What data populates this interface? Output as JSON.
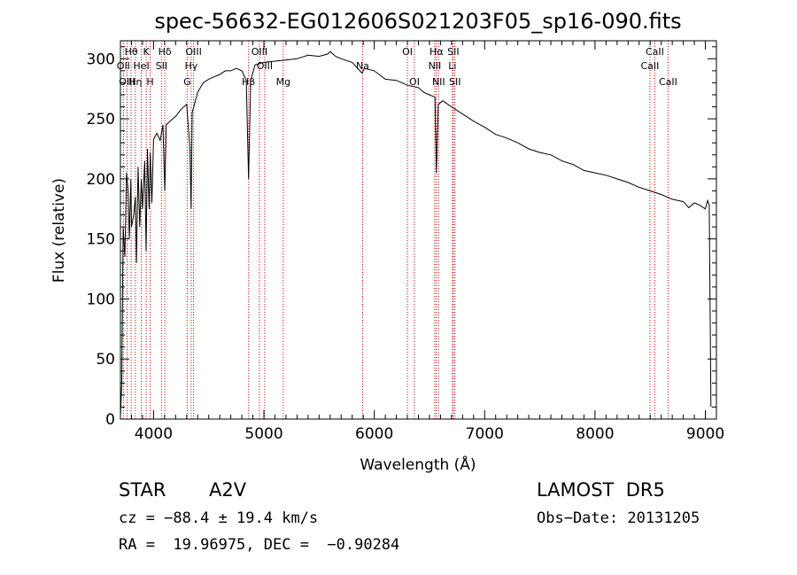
{
  "chart_data": {
    "type": "line",
    "title": "spec-56632-EG012606S021203F05_sp16-090.fits",
    "xlabel": "Wavelength (Å)",
    "ylabel": "Flux (relative)",
    "xlim": [
      3700,
      9100
    ],
    "ylim": [
      0,
      315
    ],
    "xticks": [
      "4000",
      "5000",
      "6000",
      "7000",
      "8000",
      "9000"
    ],
    "yticks": [
      "0",
      "50",
      "100",
      "150",
      "200",
      "250",
      "300"
    ],
    "grid": false,
    "series": [
      {
        "x": [
          3700,
          3712,
          3725,
          3740,
          3755,
          3770,
          3780,
          3795,
          3800,
          3820,
          3835,
          3845,
          3860,
          3875,
          3889,
          3900,
          3920,
          3933,
          3945,
          3960,
          3970,
          3985,
          4000,
          4030,
          4060,
          4085,
          4102,
          4115,
          4150,
          4200,
          4250,
          4300,
          4330,
          4340,
          4350,
          4400,
          4450,
          4500,
          4550,
          4600,
          4650,
          4700,
          4750,
          4800,
          4840,
          4861,
          4880,
          4920,
          4960,
          5000,
          5100,
          5200,
          5300,
          5400,
          5500,
          5580,
          5600,
          5650,
          5700,
          5800,
          5890,
          5910,
          6000,
          6100,
          6200,
          6300,
          6400,
          6450,
          6500,
          6550,
          6563,
          6580,
          6620,
          6700,
          6800,
          6900,
          7000,
          7100,
          7200,
          7300,
          7400,
          7500,
          7600,
          7700,
          7800,
          7900,
          8000,
          8100,
          8200,
          8300,
          8400,
          8500,
          8600,
          8700,
          8800,
          8850,
          8900,
          8950,
          9000,
          9020,
          9035,
          9050
        ],
        "y": [
          2,
          30,
          160,
          135,
          205,
          190,
          150,
          200,
          160,
          170,
          185,
          130,
          210,
          160,
          200,
          175,
          215,
          140,
          225,
          175,
          222,
          180,
          233,
          238,
          232,
          245,
          190,
          245,
          248,
          252,
          258,
          262,
          225,
          175,
          255,
          272,
          280,
          283,
          285,
          287,
          290,
          290,
          292,
          290,
          282,
          200,
          282,
          295,
          296,
          297,
          298,
          299,
          300,
          303,
          302,
          304,
          306,
          302,
          300,
          297,
          288,
          292,
          290,
          283,
          282,
          278,
          276,
          272,
          270,
          268,
          205,
          262,
          265,
          260,
          254,
          248,
          243,
          237,
          234,
          230,
          225,
          222,
          220,
          215,
          212,
          207,
          205,
          203,
          200,
          197,
          193,
          190,
          187,
          183,
          181,
          176,
          180,
          178,
          175,
          182,
          178,
          10
        ]
      }
    ],
    "line_markers": [
      {
        "label": "Hθ",
        "wavelength": 3797,
        "row": 0
      },
      {
        "label": "OII",
        "wavelength": 3727,
        "row": 1
      },
      {
        "label": "OIII",
        "wavelength": 3760,
        "row": 2
      },
      {
        "label": "Hη",
        "wavelength": 3835,
        "row": 2
      },
      {
        "label": "HeI",
        "wavelength": 3889,
        "row": 1
      },
      {
        "label": "K",
        "wavelength": 3934,
        "row": 0
      },
      {
        "label": "H",
        "wavelength": 3969,
        "row": 2
      },
      {
        "label": "SII",
        "wavelength": 4072,
        "row": 1
      },
      {
        "label": "Hδ",
        "wavelength": 4102,
        "row": 0
      },
      {
        "label": "OIII",
        "wavelength": 4363,
        "row": 0
      },
      {
        "label": "Hγ",
        "wavelength": 4341,
        "row": 1
      },
      {
        "label": "G",
        "wavelength": 4305,
        "row": 2
      },
      {
        "label": "Hβ",
        "wavelength": 4861,
        "row": 2
      },
      {
        "label": "OIII",
        "wavelength": 4959,
        "row": 0
      },
      {
        "label": "OIII",
        "wavelength": 5007,
        "row": 1
      },
      {
        "label": "Mg",
        "wavelength": 5175,
        "row": 2
      },
      {
        "label": "Na",
        "wavelength": 5894,
        "row": 1
      },
      {
        "label": "OI",
        "wavelength": 6300,
        "row": 0
      },
      {
        "label": "OI",
        "wavelength": 6364,
        "row": 2
      },
      {
        "label": "Hα",
        "wavelength": 6563,
        "row": 0
      },
      {
        "label": "NII",
        "wavelength": 6548,
        "row": 1
      },
      {
        "label": "NII",
        "wavelength": 6583,
        "row": 2
      },
      {
        "label": "Li",
        "wavelength": 6708,
        "row": 1
      },
      {
        "label": "SII",
        "wavelength": 6716,
        "row": 0
      },
      {
        "label": "SII",
        "wavelength": 6731,
        "row": 2
      },
      {
        "label": "CaII",
        "wavelength": 8498,
        "row": 1
      },
      {
        "label": "CaII",
        "wavelength": 8542,
        "row": 0
      },
      {
        "label": "CaII",
        "wavelength": 8662,
        "row": 2
      }
    ]
  },
  "info": {
    "class": "STAR",
    "subclass": "A2V",
    "survey": "LAMOST  DR5",
    "cz": "cz = −88.4 ± 19.4 km/s",
    "obs_date": "Obs−Date: 20131205",
    "coords": "RA =  19.96975, DEC =  −0.90284"
  },
  "colors": {
    "spectrum": "#000000",
    "marker_line": "#cc0000",
    "axis": "#000000"
  }
}
